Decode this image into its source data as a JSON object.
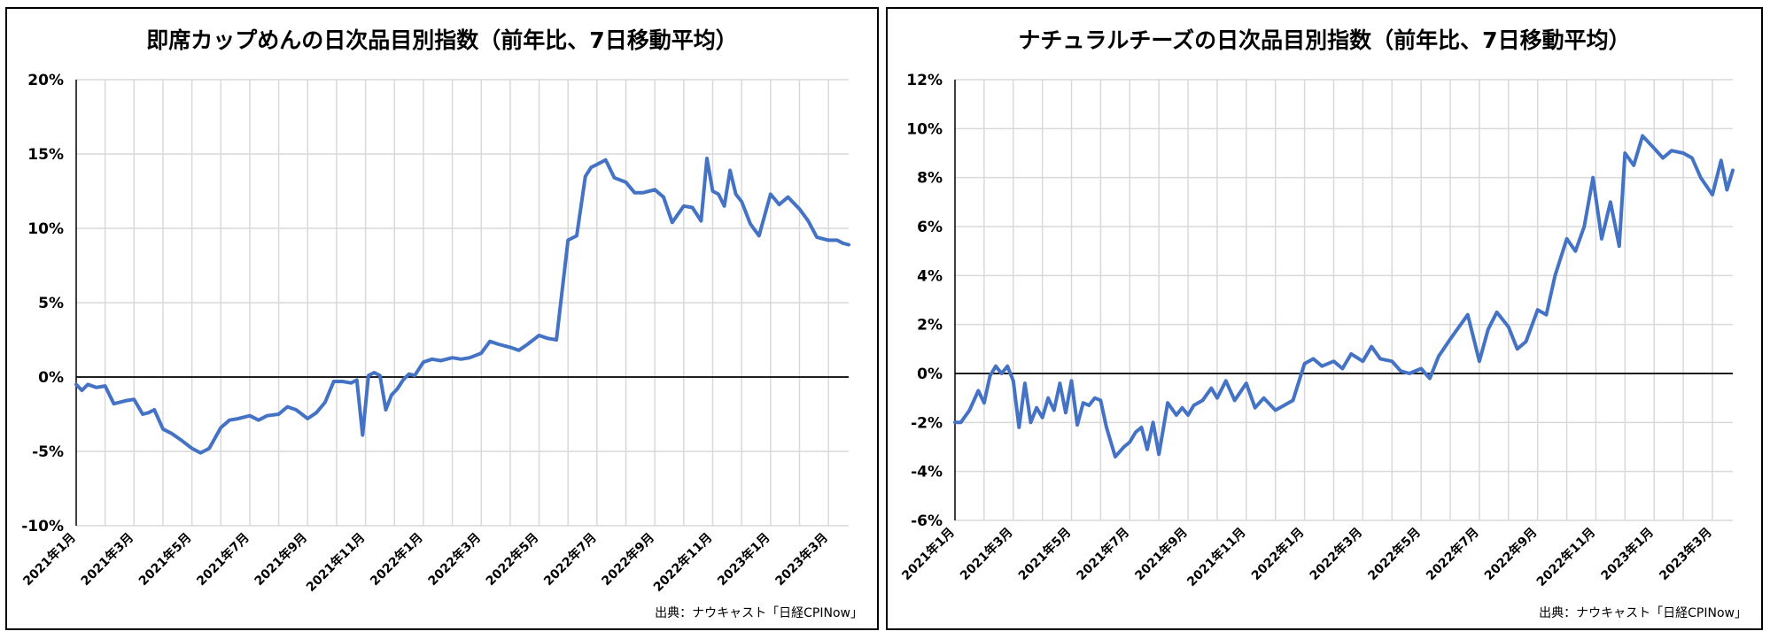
{
  "chart_data": [
    {
      "type": "line",
      "title": "即席カップめんの日次品目別指数（前年比、7日移動平均）",
      "source": "出典：ナウキャスト「日経CPINow」",
      "ylim": [
        -10,
        20
      ],
      "yticks": [
        -10,
        -5,
        0,
        5,
        10,
        15,
        20
      ],
      "ytick_labels": [
        "-10%",
        "-5%",
        "0%",
        "5%",
        "10%",
        "15%",
        "20%"
      ],
      "x_tick_labels": [
        "2021年1月",
        "2021年3月",
        "2021年5月",
        "2021年7月",
        "2021年9月",
        "2021年11月",
        "2022年1月",
        "2022年3月",
        "2022年5月",
        "2022年7月",
        "2022年9月",
        "2022年11月",
        "2023年1月",
        "2023年3月"
      ],
      "xlim": [
        0,
        26.7
      ],
      "grid": true,
      "series": [
        {
          "color": "#4472C4",
          "x": [
            0,
            0.2,
            0.4,
            0.7,
            1.0,
            1.3,
            1.7,
            2.0,
            2.3,
            2.5,
            2.7,
            3.0,
            3.3,
            3.6,
            4.0,
            4.3,
            4.6,
            5.0,
            5.3,
            5.6,
            6.0,
            6.3,
            6.6,
            7.0,
            7.3,
            7.6,
            8.0,
            8.3,
            8.6,
            8.9,
            9.2,
            9.5,
            9.7,
            9.9,
            10.1,
            10.3,
            10.5,
            10.7,
            10.9,
            11.1,
            11.3,
            11.5,
            11.7,
            12.0,
            12.3,
            12.6,
            13.0,
            13.3,
            13.6,
            14.0,
            14.3,
            14.6,
            15.0,
            15.3,
            15.6,
            16.0,
            16.3,
            16.6,
            17.0,
            17.3,
            17.6,
            17.8,
            18.0,
            18.3,
            18.6,
            19.0,
            19.3,
            19.6,
            20.0,
            20.3,
            20.6,
            21.0,
            21.3,
            21.6,
            21.8,
            22.0,
            22.2,
            22.4,
            22.6,
            22.8,
            23.0,
            23.3,
            23.6,
            24.0,
            24.3,
            24.6,
            25.0,
            25.3,
            25.6,
            26.0,
            26.3,
            26.5,
            26.7
          ],
          "y": [
            -0.5,
            -0.9,
            -0.5,
            -0.7,
            -0.6,
            -1.8,
            -1.6,
            -1.5,
            -2.5,
            -2.4,
            -2.2,
            -3.5,
            -3.8,
            -4.2,
            -4.8,
            -5.1,
            -4.8,
            -3.4,
            -2.9,
            -2.8,
            -2.6,
            -2.9,
            -2.6,
            -2.5,
            -2.0,
            -2.2,
            -2.8,
            -2.4,
            -1.7,
            -0.3,
            -0.3,
            -0.4,
            -0.2,
            -3.9,
            0.1,
            0.3,
            0.1,
            -2.2,
            -1.2,
            -0.8,
            -0.2,
            0.2,
            0.1,
            1.0,
            1.2,
            1.1,
            1.3,
            1.2,
            1.3,
            1.6,
            2.4,
            2.2,
            2.0,
            1.8,
            2.2,
            2.8,
            2.6,
            2.5,
            9.2,
            9.5,
            13.5,
            14.1,
            14.3,
            14.6,
            13.4,
            13.1,
            12.4,
            12.4,
            12.6,
            12.1,
            10.4,
            11.5,
            11.4,
            10.5,
            14.7,
            12.5,
            12.3,
            11.5,
            13.9,
            12.3,
            11.8,
            10.3,
            9.5,
            12.3,
            11.6,
            12.1,
            11.3,
            10.5,
            9.4,
            9.2,
            9.2,
            9.0,
            8.9
          ]
        }
      ]
    },
    {
      "type": "line",
      "title": "ナチュラルチーズの日次品目別指数（前年比、7日移動平均）",
      "source": "出典：ナウキャスト「日経CPINow」",
      "ylim": [
        -6,
        12
      ],
      "yticks": [
        -6,
        -4,
        -2,
        0,
        2,
        4,
        6,
        8,
        10,
        12
      ],
      "ytick_labels": [
        "-6%",
        "-4%",
        "-2%",
        "0%",
        "2%",
        "4%",
        "6%",
        "8%",
        "10%",
        "12%"
      ],
      "x_tick_labels": [
        "2021年1月",
        "2021年3月",
        "2021年5月",
        "2021年7月",
        "2021年9月",
        "2021年11月",
        "2022年1月",
        "2022年3月",
        "2022年5月",
        "2022年7月",
        "2022年9月",
        "2022年11月",
        "2023年1月",
        "2023年3月"
      ],
      "xlim": [
        0,
        26.7
      ],
      "grid": true,
      "series": [
        {
          "color": "#4472C4",
          "x": [
            0,
            0.2,
            0.5,
            0.8,
            1.0,
            1.2,
            1.4,
            1.6,
            1.8,
            2.0,
            2.2,
            2.4,
            2.6,
            2.8,
            3.0,
            3.2,
            3.4,
            3.6,
            3.8,
            4.0,
            4.2,
            4.4,
            4.6,
            4.8,
            5.0,
            5.2,
            5.5,
            5.8,
            6.0,
            6.2,
            6.4,
            6.6,
            6.8,
            7.0,
            7.3,
            7.6,
            7.8,
            8.0,
            8.2,
            8.5,
            8.8,
            9.0,
            9.3,
            9.6,
            10.0,
            10.3,
            10.6,
            11.0,
            11.3,
            11.6,
            12.0,
            12.3,
            12.6,
            13.0,
            13.3,
            13.6,
            14.0,
            14.3,
            14.6,
            15.0,
            15.3,
            15.6,
            16.0,
            16.3,
            16.6,
            17.0,
            17.3,
            17.6,
            18.0,
            18.3,
            18.6,
            19.0,
            19.3,
            19.6,
            20.0,
            20.3,
            20.6,
            21.0,
            21.3,
            21.6,
            21.9,
            22.2,
            22.5,
            22.8,
            23.0,
            23.3,
            23.6,
            24.0,
            24.3,
            24.6,
            25.0,
            25.3,
            25.6,
            26.0,
            26.3,
            26.5,
            26.7
          ],
          "y": [
            -2.0,
            -2.0,
            -1.5,
            -0.7,
            -1.2,
            -0.1,
            0.3,
            0.0,
            0.3,
            -0.3,
            -2.2,
            -0.4,
            -2.0,
            -1.4,
            -1.8,
            -1.0,
            -1.5,
            -0.4,
            -1.6,
            -0.3,
            -2.1,
            -1.2,
            -1.3,
            -1.0,
            -1.1,
            -2.2,
            -3.4,
            -3.0,
            -2.8,
            -2.4,
            -2.2,
            -3.1,
            -2.0,
            -3.3,
            -1.2,
            -1.7,
            -1.4,
            -1.7,
            -1.3,
            -1.1,
            -0.6,
            -1.0,
            -0.3,
            -1.1,
            -0.4,
            -1.4,
            -1.0,
            -1.5,
            -1.3,
            -1.1,
            0.4,
            0.6,
            0.3,
            0.5,
            0.2,
            0.8,
            0.5,
            1.1,
            0.6,
            0.5,
            0.1,
            0.0,
            0.2,
            -0.2,
            0.7,
            1.4,
            1.9,
            2.4,
            0.5,
            1.8,
            2.5,
            1.9,
            1.0,
            1.3,
            2.6,
            2.4,
            4.0,
            5.5,
            5.0,
            6.0,
            8.0,
            5.5,
            7.0,
            5.2,
            9.0,
            8.5,
            9.7,
            9.2,
            8.8,
            9.1,
            9.0,
            8.8,
            8.0,
            7.3,
            8.7,
            7.5,
            8.3
          ]
        }
      ]
    }
  ]
}
